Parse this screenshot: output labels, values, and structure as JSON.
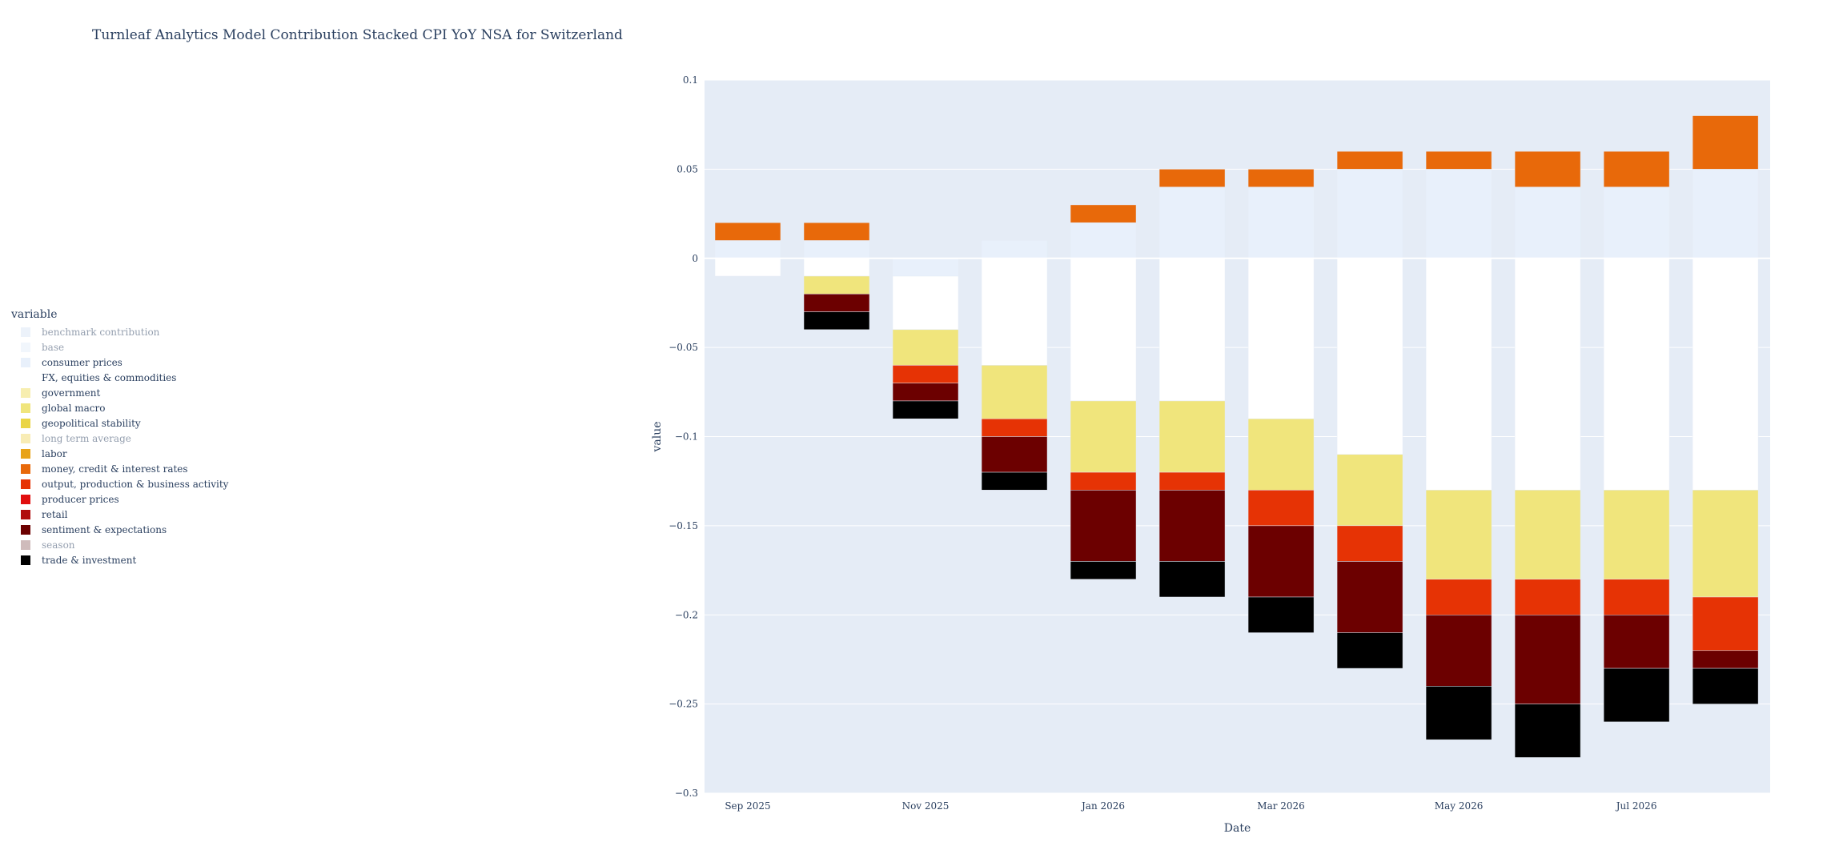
{
  "chart_data": {
    "type": "bar",
    "title": "Turnleaf Analytics Model Contribution Stacked CPI YoY NSA for Switzerland",
    "xlabel": "Date",
    "ylabel": "value",
    "ylim": [
      -0.3,
      0.1
    ],
    "yticks": [
      -0.3,
      -0.25,
      -0.2,
      -0.15,
      -0.1,
      -0.05,
      0,
      0.05,
      0.1
    ],
    "ytick_labels": [
      "−0.3",
      "−0.25",
      "−0.2",
      "−0.15",
      "−0.1",
      "−0.05",
      "0",
      "0.05",
      "0.1"
    ],
    "x_tick_labels": [
      {
        "date": "2025-09",
        "label": "Sep 2025"
      },
      {
        "date": "2025-11",
        "label": "Nov 2025"
      },
      {
        "date": "2026-01",
        "label": "Jan 2026"
      },
      {
        "date": "2026-03",
        "label": "Mar 2026"
      },
      {
        "date": "2026-05",
        "label": "May 2026"
      },
      {
        "date": "2026-07",
        "label": "Jul 2026"
      }
    ],
    "categories": [
      "2025-09",
      "2025-10",
      "2025-11",
      "2025-12",
      "2026-01",
      "2026-02",
      "2026-03",
      "2026-04",
      "2026-05",
      "2026-06",
      "2026-07",
      "2026-08"
    ],
    "grid": true,
    "legend": {
      "title": "variable",
      "placement": "left"
    },
    "series": [
      {
        "name": "benchmark contribution",
        "color": "#dbe7f7",
        "dim": true,
        "values": [
          0,
          0,
          0,
          0,
          0,
          0,
          0,
          0,
          0,
          0,
          0,
          0
        ]
      },
      {
        "name": "base",
        "color": "#e5eefa",
        "dim": true,
        "values": [
          0,
          0,
          0,
          0,
          0,
          0,
          0,
          0,
          0,
          0,
          0,
          0
        ]
      },
      {
        "name": "consumer prices",
        "color": "#e8f0fb",
        "dim": false,
        "values": [
          0.01,
          0.01,
          -0.01,
          0.01,
          0.02,
          0.04,
          0.04,
          0.05,
          0.05,
          0.04,
          0.04,
          0.05
        ]
      },
      {
        "name": "FX, equities & commodities",
        "color": "#ffffff",
        "dim": false,
        "values": [
          -0.01,
          -0.01,
          -0.03,
          -0.06,
          -0.08,
          -0.08,
          -0.09,
          -0.11,
          -0.13,
          -0.13,
          -0.13,
          -0.13
        ]
      },
      {
        "name": "government",
        "color": "#f7eeb0",
        "dim": false,
        "values": [
          0,
          0,
          0,
          0,
          0,
          0,
          0,
          0,
          0,
          0,
          0,
          0
        ]
      },
      {
        "name": "global macro",
        "color": "#f0e57c",
        "dim": false,
        "values": [
          0,
          -0.01,
          -0.02,
          -0.03,
          -0.04,
          -0.04,
          -0.04,
          -0.04,
          -0.05,
          -0.05,
          -0.05,
          -0.06
        ]
      },
      {
        "name": "geopolitical stability",
        "color": "#ead545",
        "dim": false,
        "values": [
          0,
          0,
          0,
          0,
          0,
          0,
          0,
          0,
          0,
          0,
          0,
          0
        ]
      },
      {
        "name": "long term average",
        "color": "#f3da6e",
        "dim": true,
        "values": [
          0,
          0,
          0,
          0,
          0,
          0,
          0,
          0,
          0,
          0,
          0,
          0
        ]
      },
      {
        "name": "labor",
        "color": "#e8a317",
        "dim": false,
        "values": [
          0,
          0,
          0,
          0,
          0,
          0,
          0,
          0,
          0,
          0,
          0,
          0
        ]
      },
      {
        "name": "money, credit & interest rates",
        "color": "#e8690a",
        "dim": false,
        "values": [
          0.01,
          0.01,
          0,
          0,
          0.01,
          0.01,
          0.01,
          0.01,
          0.01,
          0.02,
          0.02,
          0.03
        ]
      },
      {
        "name": "output, production & business activity",
        "color": "#e63305",
        "dim": false,
        "values": [
          0,
          0,
          -0.01,
          -0.01,
          -0.01,
          -0.01,
          -0.02,
          -0.02,
          -0.02,
          -0.02,
          -0.02,
          -0.03
        ]
      },
      {
        "name": "producer prices",
        "color": "#e10e0e",
        "dim": false,
        "values": [
          0,
          0,
          0,
          0,
          0,
          0,
          0,
          0,
          0,
          0,
          0,
          0
        ]
      },
      {
        "name": "retail",
        "color": "#b00c0c",
        "dim": false,
        "values": [
          0,
          0,
          0,
          0,
          0,
          0,
          0,
          0,
          0,
          0,
          0,
          0
        ]
      },
      {
        "name": "sentiment & expectations",
        "color": "#6c0000",
        "dim": false,
        "values": [
          0,
          -0.01,
          -0.01,
          -0.02,
          -0.04,
          -0.04,
          -0.04,
          -0.04,
          -0.04,
          -0.05,
          -0.03,
          -0.01
        ]
      },
      {
        "name": "season",
        "color": "#a07a7a",
        "dim": true,
        "values": [
          0,
          0,
          0,
          0,
          0,
          0,
          0,
          0,
          0,
          0,
          0,
          0
        ]
      },
      {
        "name": "trade & investment",
        "color": "#000000",
        "dim": false,
        "values": [
          0,
          -0.01,
          -0.01,
          -0.01,
          -0.01,
          -0.02,
          -0.02,
          -0.02,
          -0.03,
          -0.03,
          -0.03,
          -0.02
        ]
      }
    ]
  }
}
